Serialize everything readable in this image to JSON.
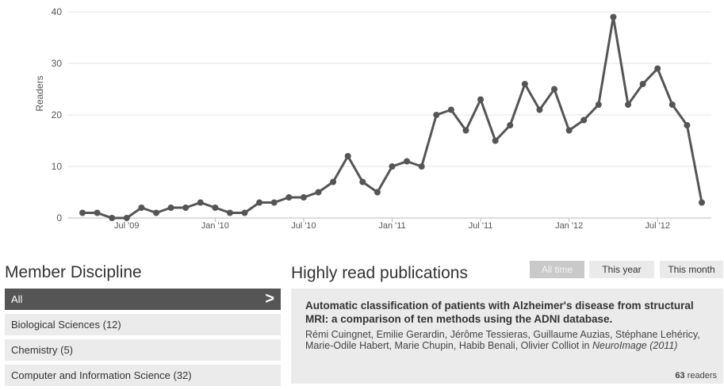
{
  "chart_data": {
    "type": "line",
    "ylabel": "Readers",
    "xlabel": "",
    "ylim": [
      0,
      40
    ],
    "yticks": [
      0,
      10,
      20,
      30,
      40
    ],
    "grid": true,
    "x_tick_labels": [
      "Jul '09",
      "Jan '10",
      "Jul '10",
      "Jan '11",
      "Jul '11",
      "Jan '12",
      "Jul '12"
    ],
    "x_tick_index": [
      3,
      9,
      15,
      21,
      27,
      33,
      39
    ],
    "series": [
      {
        "values": [
          1,
          1,
          0,
          0,
          2,
          1,
          2,
          2,
          3,
          2,
          1,
          1,
          3,
          3,
          4,
          4,
          5,
          7,
          12,
          7,
          5,
          10,
          11,
          10,
          20,
          21,
          17,
          23,
          15,
          18,
          26,
          21,
          25,
          17,
          19,
          22,
          39,
          22,
          26,
          29,
          22,
          18,
          3
        ]
      }
    ],
    "color": "#555555"
  },
  "discipline": {
    "title": "Member Discipline",
    "items": [
      {
        "label": "All",
        "active": true
      },
      {
        "label": "Biological Sciences (12)",
        "active": false
      },
      {
        "label": "Chemistry (5)",
        "active": false
      },
      {
        "label": "Computer and Information Science (32)",
        "active": false
      }
    ],
    "arrow": ">"
  },
  "publications": {
    "title": "Highly read publications",
    "filters": [
      "All time",
      "This year",
      "This month"
    ],
    "active_filter": "All time",
    "items": [
      {
        "title": "Automatic classification of patients with Alzheimer's disease from structural MRI: a comparison of ten methods using the ADNI database.",
        "authors": "Rémi Cuingnet, Emilie Gerardin, Jérôme Tessieras, Guillaume Auzias, Stéphane Lehéricy, Marie-Odile Habert, Marie Chupin, Habib Benali, Olivier Colliot in",
        "journal": "NeuroImage (2011)",
        "readers_count": "63",
        "readers_label": "readers"
      }
    ]
  }
}
